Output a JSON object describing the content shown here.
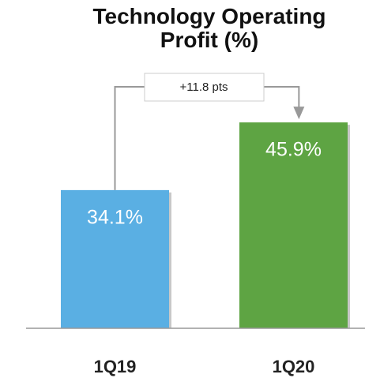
{
  "chart_data": {
    "type": "bar",
    "title": "Technology Operating Profit (%)",
    "categories": [
      "1Q19",
      "1Q20"
    ],
    "values": [
      34.1,
      45.9
    ],
    "value_labels": [
      "34.1%",
      "45.9%"
    ],
    "colors": [
      "#5aafe3",
      "#5ea443"
    ],
    "annotation": "+11.8 pts",
    "ylim": [
      10,
      55
    ]
  }
}
